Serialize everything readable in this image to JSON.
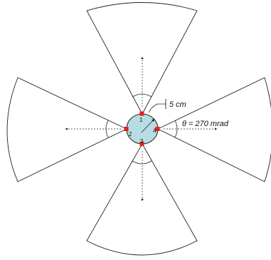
{
  "diagram": {
    "radius_label": "5 cm",
    "angle_label": "θ = 270 mrad",
    "detectors": [
      {
        "id": "1",
        "direction": "up"
      },
      {
        "id": "2",
        "direction": "left"
      },
      {
        "id": "3",
        "direction": "down"
      },
      {
        "id": "4",
        "direction": "right"
      }
    ],
    "colors": {
      "core_fill": "#b7dde3",
      "marker": "#e0201a",
      "line": "#222222"
    }
  }
}
